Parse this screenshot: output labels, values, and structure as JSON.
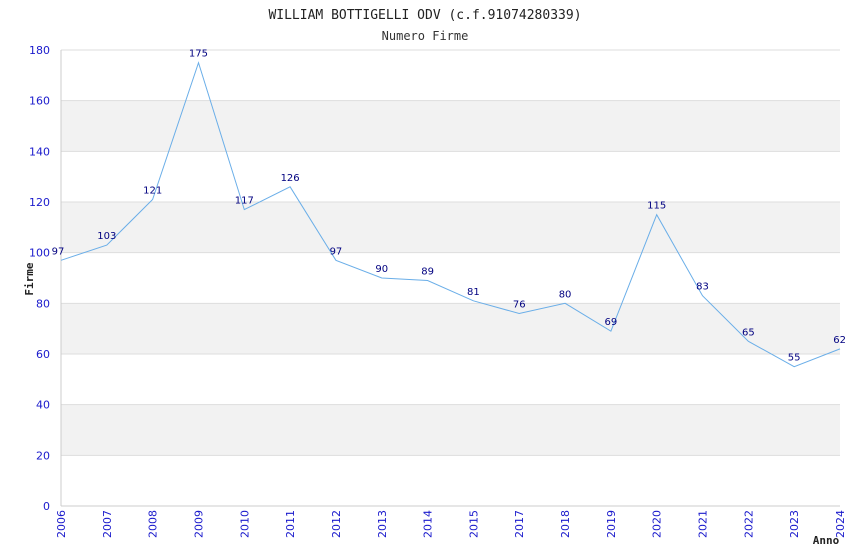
{
  "chart_data": {
    "type": "line",
    "title": "WILLIAM BOTTIGELLI ODV (c.f.91074280339)",
    "subtitle": "Numero Firme",
    "xlabel": "Anno",
    "ylabel": "Firme",
    "ylim": [
      0,
      180
    ],
    "yticks": [
      "0",
      "20",
      "40",
      "60",
      "80",
      "100",
      "120",
      "140",
      "160",
      "180"
    ],
    "categories": [
      "2006",
      "2007",
      "2008",
      "2009",
      "2010",
      "2011",
      "2012",
      "2013",
      "2014",
      "2015",
      "2017",
      "2018",
      "2019",
      "2020",
      "2021",
      "2022",
      "2023",
      "2024"
    ],
    "series": [
      {
        "name": "Firme",
        "values": [
          97,
          103,
          121,
          175,
          117,
          126,
          97,
          90,
          89,
          81,
          76,
          80,
          69,
          115,
          83,
          65,
          55,
          62
        ]
      }
    ],
    "grid": true,
    "colors": {
      "line": "#6aaee8",
      "tick_text": "#1a1acc",
      "data_label": "#000080",
      "band": "#f2f2f2",
      "gridline": "#dddddd",
      "axis": "#cccccc"
    }
  }
}
